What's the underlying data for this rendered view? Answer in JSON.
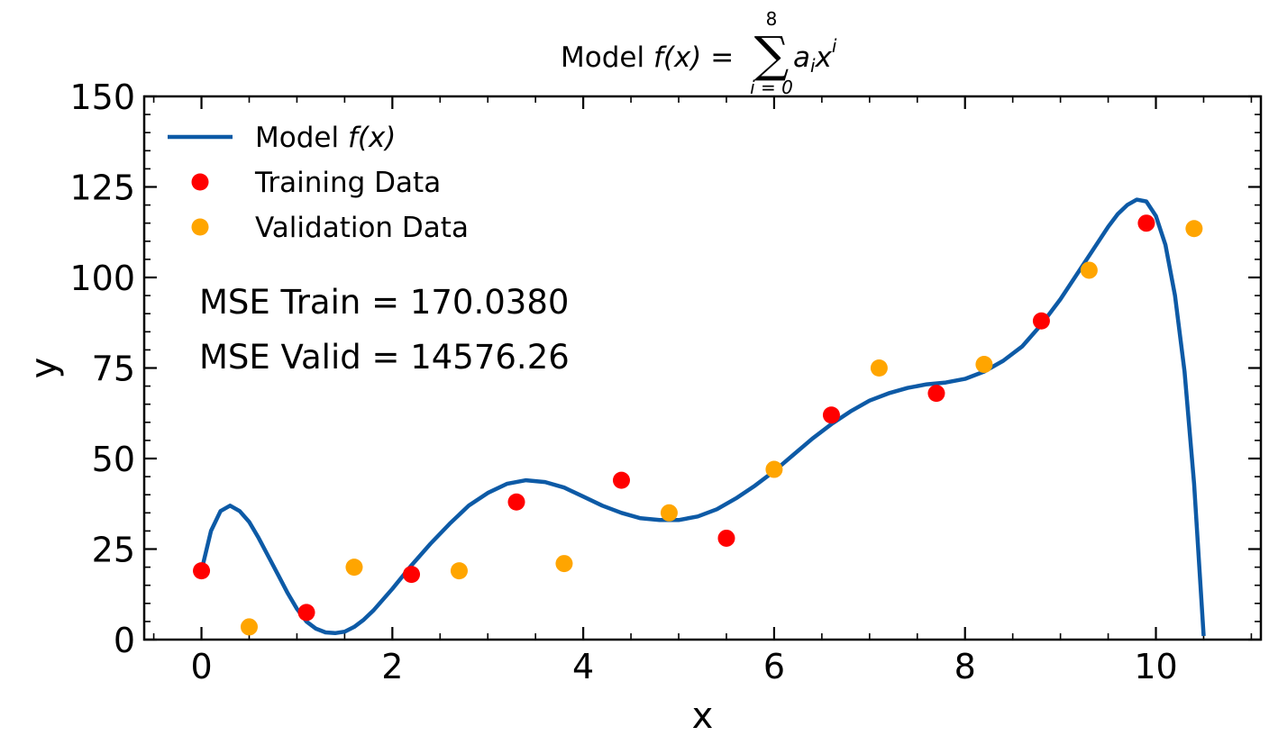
{
  "chart_data": {
    "type": "scatter",
    "title_prefix": "Model ",
    "title_math_lhs": "f(x) = ",
    "title_sum_upper": "8",
    "title_sum_lower": "i = 0",
    "title_summand": "a",
    "title_summand_sub": "i",
    "title_summand_var": "x",
    "title_summand_sup": "i",
    "xlabel": "x",
    "ylabel": "y",
    "xlim": [
      -0.6,
      11.1
    ],
    "ylim": [
      0,
      150
    ],
    "xticks": [
      0,
      2,
      4,
      6,
      8,
      10
    ],
    "yticks": [
      0,
      25,
      50,
      75,
      100,
      125,
      150
    ],
    "legend_position": "upper-left",
    "series": [
      {
        "name": "Model f(x)",
        "name_prefix": "Model ",
        "name_math": "f(x)",
        "kind": "line",
        "color": "#0d5aa6",
        "x": [
          0,
          0.1,
          0.2,
          0.3,
          0.4,
          0.5,
          0.6,
          0.7,
          0.8,
          0.9,
          1.0,
          1.1,
          1.2,
          1.3,
          1.4,
          1.5,
          1.6,
          1.7,
          1.8,
          2.0,
          2.2,
          2.4,
          2.6,
          2.8,
          3.0,
          3.2,
          3.4,
          3.6,
          3.8,
          4.0,
          4.2,
          4.4,
          4.6,
          4.8,
          5.0,
          5.2,
          5.4,
          5.6,
          5.8,
          6.0,
          6.2,
          6.4,
          6.6,
          6.8,
          7.0,
          7.2,
          7.4,
          7.6,
          7.8,
          8.0,
          8.2,
          8.4,
          8.6,
          8.8,
          9.0,
          9.2,
          9.4,
          9.5,
          9.6,
          9.7,
          9.8,
          9.9,
          10.0,
          10.1,
          10.2,
          10.3,
          10.4,
          10.5
        ],
        "y": [
          19,
          30,
          35.5,
          37,
          35.5,
          32.5,
          28,
          23,
          18,
          13,
          8.5,
          5,
          3,
          2,
          1.8,
          2.2,
          3.5,
          5.5,
          8,
          14,
          20.5,
          26.5,
          32,
          37,
          40.5,
          43,
          44,
          43.5,
          42,
          39.5,
          37,
          35,
          33.5,
          33,
          33,
          34,
          36,
          39,
          42.5,
          46.5,
          51,
          55.5,
          59.5,
          63,
          66,
          68,
          69.5,
          70.5,
          71,
          72,
          74,
          77,
          81,
          87,
          94,
          102,
          110,
          114,
          117.5,
          120,
          121.5,
          121,
          117,
          109,
          95,
          74,
          43,
          1
        ]
      },
      {
        "name": "Training Data",
        "kind": "scatter",
        "color": "#ff0000",
        "x": [
          0,
          1.1,
          2.2,
          3.3,
          4.4,
          5.5,
          6.6,
          7.7,
          8.8,
          9.9
        ],
        "y": [
          19,
          7.5,
          18,
          38,
          44,
          28,
          62,
          68,
          88,
          115
        ]
      },
      {
        "name": "Validation Data",
        "kind": "scatter",
        "color": "#ffa500",
        "x": [
          0.5,
          1.6,
          2.7,
          3.8,
          4.9,
          6.0,
          7.1,
          8.2,
          9.3,
          10.4
        ],
        "y": [
          3.5,
          20,
          19,
          21,
          35,
          47,
          75,
          76,
          102,
          113.5
        ]
      }
    ],
    "annotations": [
      "MSE Train = 170.0380",
      "MSE Valid = 14576.26"
    ]
  }
}
